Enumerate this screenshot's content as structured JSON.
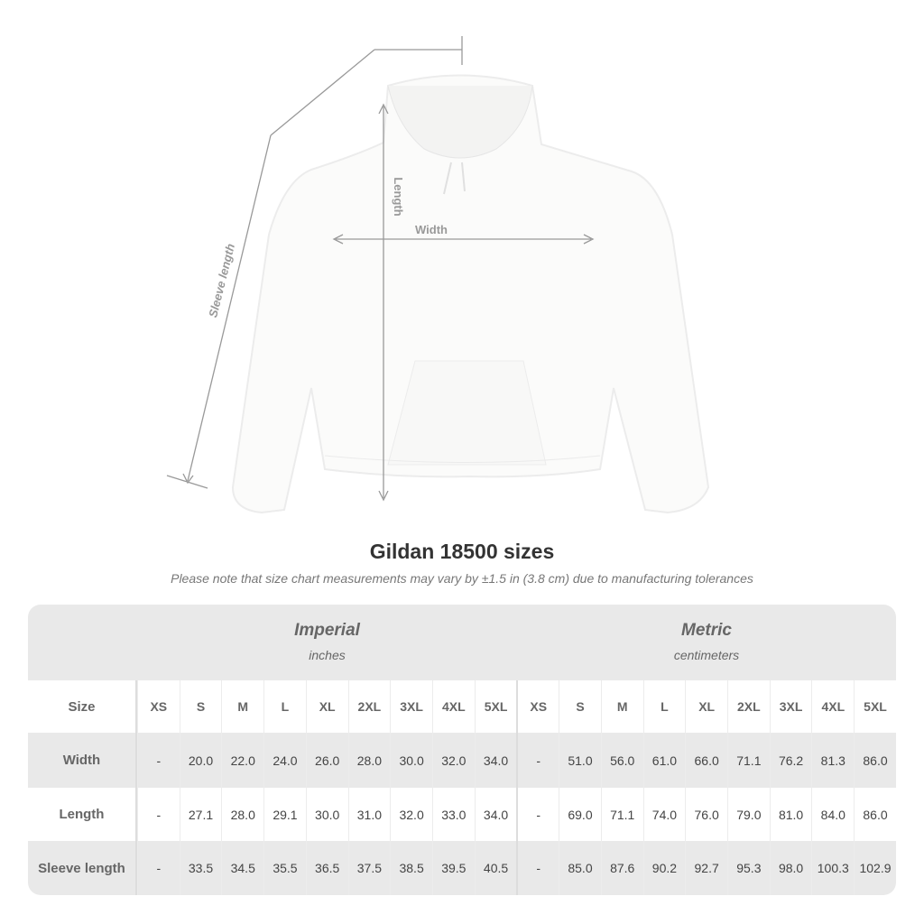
{
  "diagram": {
    "sleeve_label": "Sleeve length",
    "length_label": "Length",
    "width_label": "Width"
  },
  "title": "Gildan 18500 sizes",
  "subtitle": "Please note that size chart measurements may vary by ±1.5 in (3.8 cm) due to manufacturing tolerances",
  "table": {
    "imperial": {
      "name": "Imperial",
      "unit": "inches"
    },
    "metric": {
      "name": "Metric",
      "unit": "centimeters"
    },
    "size_label": "Size",
    "sizes": [
      "XS",
      "S",
      "M",
      "L",
      "XL",
      "2XL",
      "3XL",
      "4XL",
      "5XL"
    ],
    "rows": [
      {
        "label": "Width",
        "imperial": [
          "-",
          "20.0",
          "22.0",
          "24.0",
          "26.0",
          "28.0",
          "30.0",
          "32.0",
          "34.0"
        ],
        "metric": [
          "-",
          "51.0",
          "56.0",
          "61.0",
          "66.0",
          "71.1",
          "76.2",
          "81.3",
          "86.0"
        ]
      },
      {
        "label": "Length",
        "imperial": [
          "-",
          "27.1",
          "28.0",
          "29.1",
          "30.0",
          "31.0",
          "32.0",
          "33.0",
          "34.0"
        ],
        "metric": [
          "-",
          "69.0",
          "71.1",
          "74.0",
          "76.0",
          "79.0",
          "81.0",
          "84.0",
          "86.0"
        ]
      },
      {
        "label": "Sleeve length",
        "imperial": [
          "-",
          "33.5",
          "34.5",
          "35.5",
          "36.5",
          "37.5",
          "38.5",
          "39.5",
          "40.5"
        ],
        "metric": [
          "-",
          "85.0",
          "87.6",
          "90.2",
          "92.7",
          "95.3",
          "98.0",
          "100.3",
          "102.9"
        ]
      }
    ]
  }
}
